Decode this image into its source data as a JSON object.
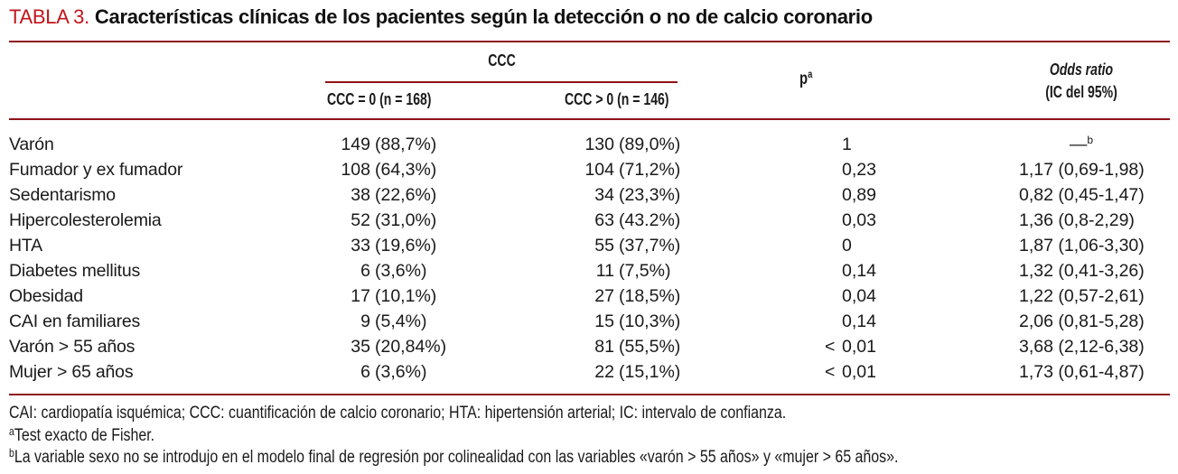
{
  "title": {
    "tag": "TABLA 3.",
    "text": "Características clínicas de los pacientes según la detección o no de calcio coronario"
  },
  "header": {
    "group": "CCC",
    "col_ccc0": "CCC = 0 (n = 168)",
    "col_ccc1": "CCC > 0 (n = 146)",
    "col_p": "p",
    "col_p_sup": "a",
    "col_or_line1": "Odds ratio",
    "col_or_line2": "(IC del 95%)"
  },
  "rows": [
    {
      "label": "Varón",
      "ccc0_n": "149",
      "ccc0_pct": "(88,7%)",
      "ccc1_n": "130",
      "ccc1_pct": "(89,0%)",
      "p_lt": "",
      "p": "1",
      "or": "—",
      "or_sup": "b",
      "or_dash": true
    },
    {
      "label": "Fumador y ex fumador",
      "ccc0_n": "108",
      "ccc0_pct": "(64,3%)",
      "ccc1_n": "104",
      "ccc1_pct": "(71,2%)",
      "p_lt": "",
      "p": "0,23",
      "or": "1,17 (0,69-1,98)"
    },
    {
      "label": "Sedentarismo",
      "ccc0_n": "38",
      "ccc0_pct": "(22,6%)",
      "ccc1_n": "34",
      "ccc1_pct": "(23,3%)",
      "p_lt": "",
      "p": "0,89",
      "or": "0,82 (0,45-1,47)"
    },
    {
      "label": "Hipercolesterolemia",
      "ccc0_n": "52",
      "ccc0_pct": "(31,0%)",
      "ccc1_n": "63",
      "ccc1_pct": "(43.2%)",
      "p_lt": "",
      "p": "0,03",
      "or": "1,36 (0,8-2,29)"
    },
    {
      "label": "HTA",
      "ccc0_n": "33",
      "ccc0_pct": "(19,6%)",
      "ccc1_n": "55",
      "ccc1_pct": "(37,7%)",
      "p_lt": "",
      "p": "0",
      "or": "1,87 (1,06-3,30)"
    },
    {
      "label": "Diabetes mellitus",
      "ccc0_n": "6",
      "ccc0_pct": "(3,6%)",
      "ccc1_n": "11",
      "ccc1_pct": "(7,5%)",
      "p_lt": "",
      "p": "0,14",
      "or": "1,32 (0,41-3,26)"
    },
    {
      "label": "Obesidad",
      "ccc0_n": "17",
      "ccc0_pct": "(10,1%)",
      "ccc1_n": "27",
      "ccc1_pct": "(18,5%)",
      "p_lt": "",
      "p": "0,04",
      "or": "1,22 (0,57-2,61)"
    },
    {
      "label": "CAI en familiares",
      "ccc0_n": "9",
      "ccc0_pct": "(5,4%)",
      "ccc1_n": "15",
      "ccc1_pct": "(10,3%)",
      "p_lt": "",
      "p": "0,14",
      "or": "2,06 (0,81-5,28)"
    },
    {
      "label": "Varón > 55 años",
      "ccc0_n": "35",
      "ccc0_pct": "(20,84%)",
      "ccc1_n": "81",
      "ccc1_pct": "(55,5%)",
      "p_lt": "<",
      "p": "0,01",
      "or": "3,68 (2,12-6,38)"
    },
    {
      "label": "Mujer > 65 años",
      "ccc0_n": "6",
      "ccc0_pct": "(3,6%)",
      "ccc1_n": "22",
      "ccc1_pct": "(15,1%)",
      "p_lt": "<",
      "p": "0,01",
      "or": "1,73 (0,61-4,87)"
    }
  ],
  "footnotes": [
    {
      "sup": "",
      "text": "CAI: cardiopatía isquémica; CCC: cuantificación de calcio coronario; HTA: hipertensión arterial; IC: intervalo de confianza."
    },
    {
      "sup": "a",
      "text": "Test exacto de Fisher."
    },
    {
      "sup": "b",
      "text": "La variable sexo no se introdujo en el modelo final de regresión por colinealidad con las variables «varón > 55 años» y «mujer > 65 años»."
    }
  ],
  "colors": {
    "title_red": "#c1161b",
    "rule_red": "#8f1314",
    "text": "#1a1a1a"
  }
}
